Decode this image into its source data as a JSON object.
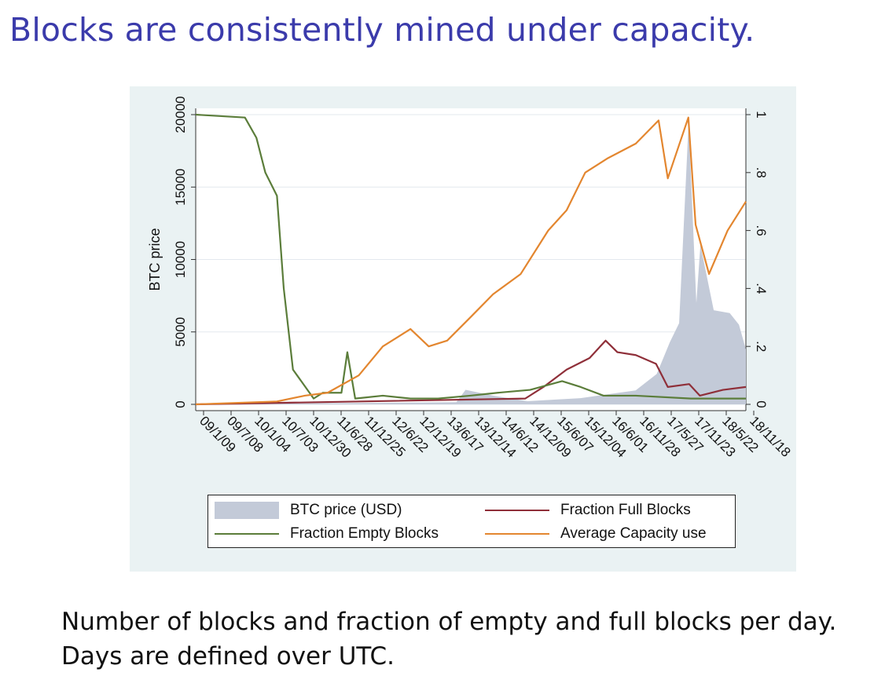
{
  "slide": {
    "title": "Blocks are consistently mined under capacity.",
    "caption_line1": "Number of blocks and fraction of empty and full blocks per day.",
    "caption_line2": "Days are defined over UTC."
  },
  "colors": {
    "title": "#3b3bab",
    "panel_bg": "#eaf2f3",
    "btc_price": "#c3cad8",
    "full_blocks": "#8f2f39",
    "empty_blocks": "#5b7d3a",
    "capacity_use": "#e3862f",
    "grid": "#e3e8ee"
  },
  "chart_data": {
    "type": "line",
    "title": "",
    "xlabel": "",
    "ylabel": "BTC price",
    "ylim": [
      0,
      20000
    ],
    "y2lim": [
      0,
      1
    ],
    "yticks": [
      "0",
      "5000",
      "10000",
      "15000",
      "20000"
    ],
    "y2ticks": [
      "0",
      ".2",
      ".4",
      ".6",
      ".8",
      "1"
    ],
    "x_tick_labels": [
      "09/1/09",
      "09/7/08",
      "10/1/04",
      "10/7/03",
      "10/12/30",
      "11/6/28",
      "11/12/25",
      "12/6/22",
      "12/12/19",
      "13/6/17",
      "13/12/14",
      "14/6/12",
      "14/12/09",
      "15/6/07",
      "15/12/04",
      "16/6/01",
      "16/11/28",
      "17/5/27",
      "17/11/23",
      "18/5/22",
      "18/11/18"
    ],
    "xlim": [
      "2009-01-09",
      "2018-12-31"
    ],
    "grid": true,
    "legend_placement": "bottom",
    "series": [
      {
        "name": "BTC price (USD)",
        "axis": "left",
        "kind": "area",
        "x": [
          "2009-01-09",
          "2013-10-01",
          "2013-12-01",
          "2014-06-01",
          "2015-01-15",
          "2016-01-01",
          "2016-12-31",
          "2017-05-20",
          "2017-08-15",
          "2017-10-15",
          "2017-12-17",
          "2018-02-06",
          "2018-03-05",
          "2018-06-01",
          "2018-09-15",
          "2018-11-15",
          "2018-12-31"
        ],
        "values": [
          0,
          150,
          1000,
          600,
          220,
          430,
          960,
          2100,
          4300,
          5600,
          19500,
          7000,
          11000,
          6500,
          6300,
          5500,
          3800
        ]
      },
      {
        "name": "Fraction Full Blocks",
        "axis": "right",
        "kind": "line",
        "x": [
          "2009-01-09",
          "2014-12-31",
          "2015-05-01",
          "2015-10-01",
          "2016-03-01",
          "2016-06-15",
          "2016-09-01",
          "2017-01-01",
          "2017-05-15",
          "2017-08-01",
          "2017-12-20",
          "2018-03-01",
          "2018-08-01",
          "2018-12-31"
        ],
        "values": [
          0,
          0.02,
          0.06,
          0.12,
          0.16,
          0.22,
          0.18,
          0.17,
          0.14,
          0.06,
          0.07,
          0.03,
          0.05,
          0.06
        ]
      },
      {
        "name": "Fraction Empty Blocks",
        "axis": "right",
        "kind": "line",
        "x": [
          "2009-01-09",
          "2009-12-01",
          "2010-02-15",
          "2010-04-15",
          "2010-07-01",
          "2010-08-15",
          "2010-10-15",
          "2011-03-01",
          "2011-05-01",
          "2011-09-01",
          "2011-10-10",
          "2011-12-01",
          "2012-06-01",
          "2012-12-01",
          "2013-06-01",
          "2014-01-01",
          "2014-07-01",
          "2015-02-01",
          "2015-09-01",
          "2016-01-01",
          "2016-06-01",
          "2017-01-01",
          "2018-01-01",
          "2018-12-31"
        ],
        "values": [
          1.0,
          0.99,
          0.92,
          0.8,
          0.72,
          0.4,
          0.12,
          0.02,
          0.04,
          0.04,
          0.18,
          0.02,
          0.03,
          0.02,
          0.02,
          0.03,
          0.04,
          0.05,
          0.08,
          0.06,
          0.03,
          0.03,
          0.02,
          0.02
        ]
      },
      {
        "name": "Average Capacity use",
        "axis": "right",
        "kind": "line",
        "x": [
          "2009-01-09",
          "2010-07-01",
          "2011-01-01",
          "2011-06-01",
          "2011-12-25",
          "2012-06-01",
          "2012-12-01",
          "2013-04-01",
          "2013-08-01",
          "2014-01-01",
          "2014-06-01",
          "2014-12-01",
          "2015-06-01",
          "2015-10-01",
          "2016-02-01",
          "2016-07-01",
          "2017-01-01",
          "2017-06-01",
          "2017-08-01",
          "2017-12-15",
          "2018-02-01",
          "2018-05-01",
          "2018-09-01",
          "2018-12-31"
        ],
        "values": [
          0,
          0.01,
          0.03,
          0.04,
          0.1,
          0.2,
          0.26,
          0.2,
          0.22,
          0.3,
          0.38,
          0.45,
          0.6,
          0.67,
          0.8,
          0.85,
          0.9,
          0.98,
          0.78,
          0.99,
          0.62,
          0.45,
          0.6,
          0.7
        ]
      }
    ]
  },
  "legend": {
    "btc_price": "BTC price (USD)",
    "full_blocks": "Fraction Full Blocks",
    "empty_blocks": "Fraction Empty Blocks",
    "capacity_use": "Average Capacity use"
  }
}
